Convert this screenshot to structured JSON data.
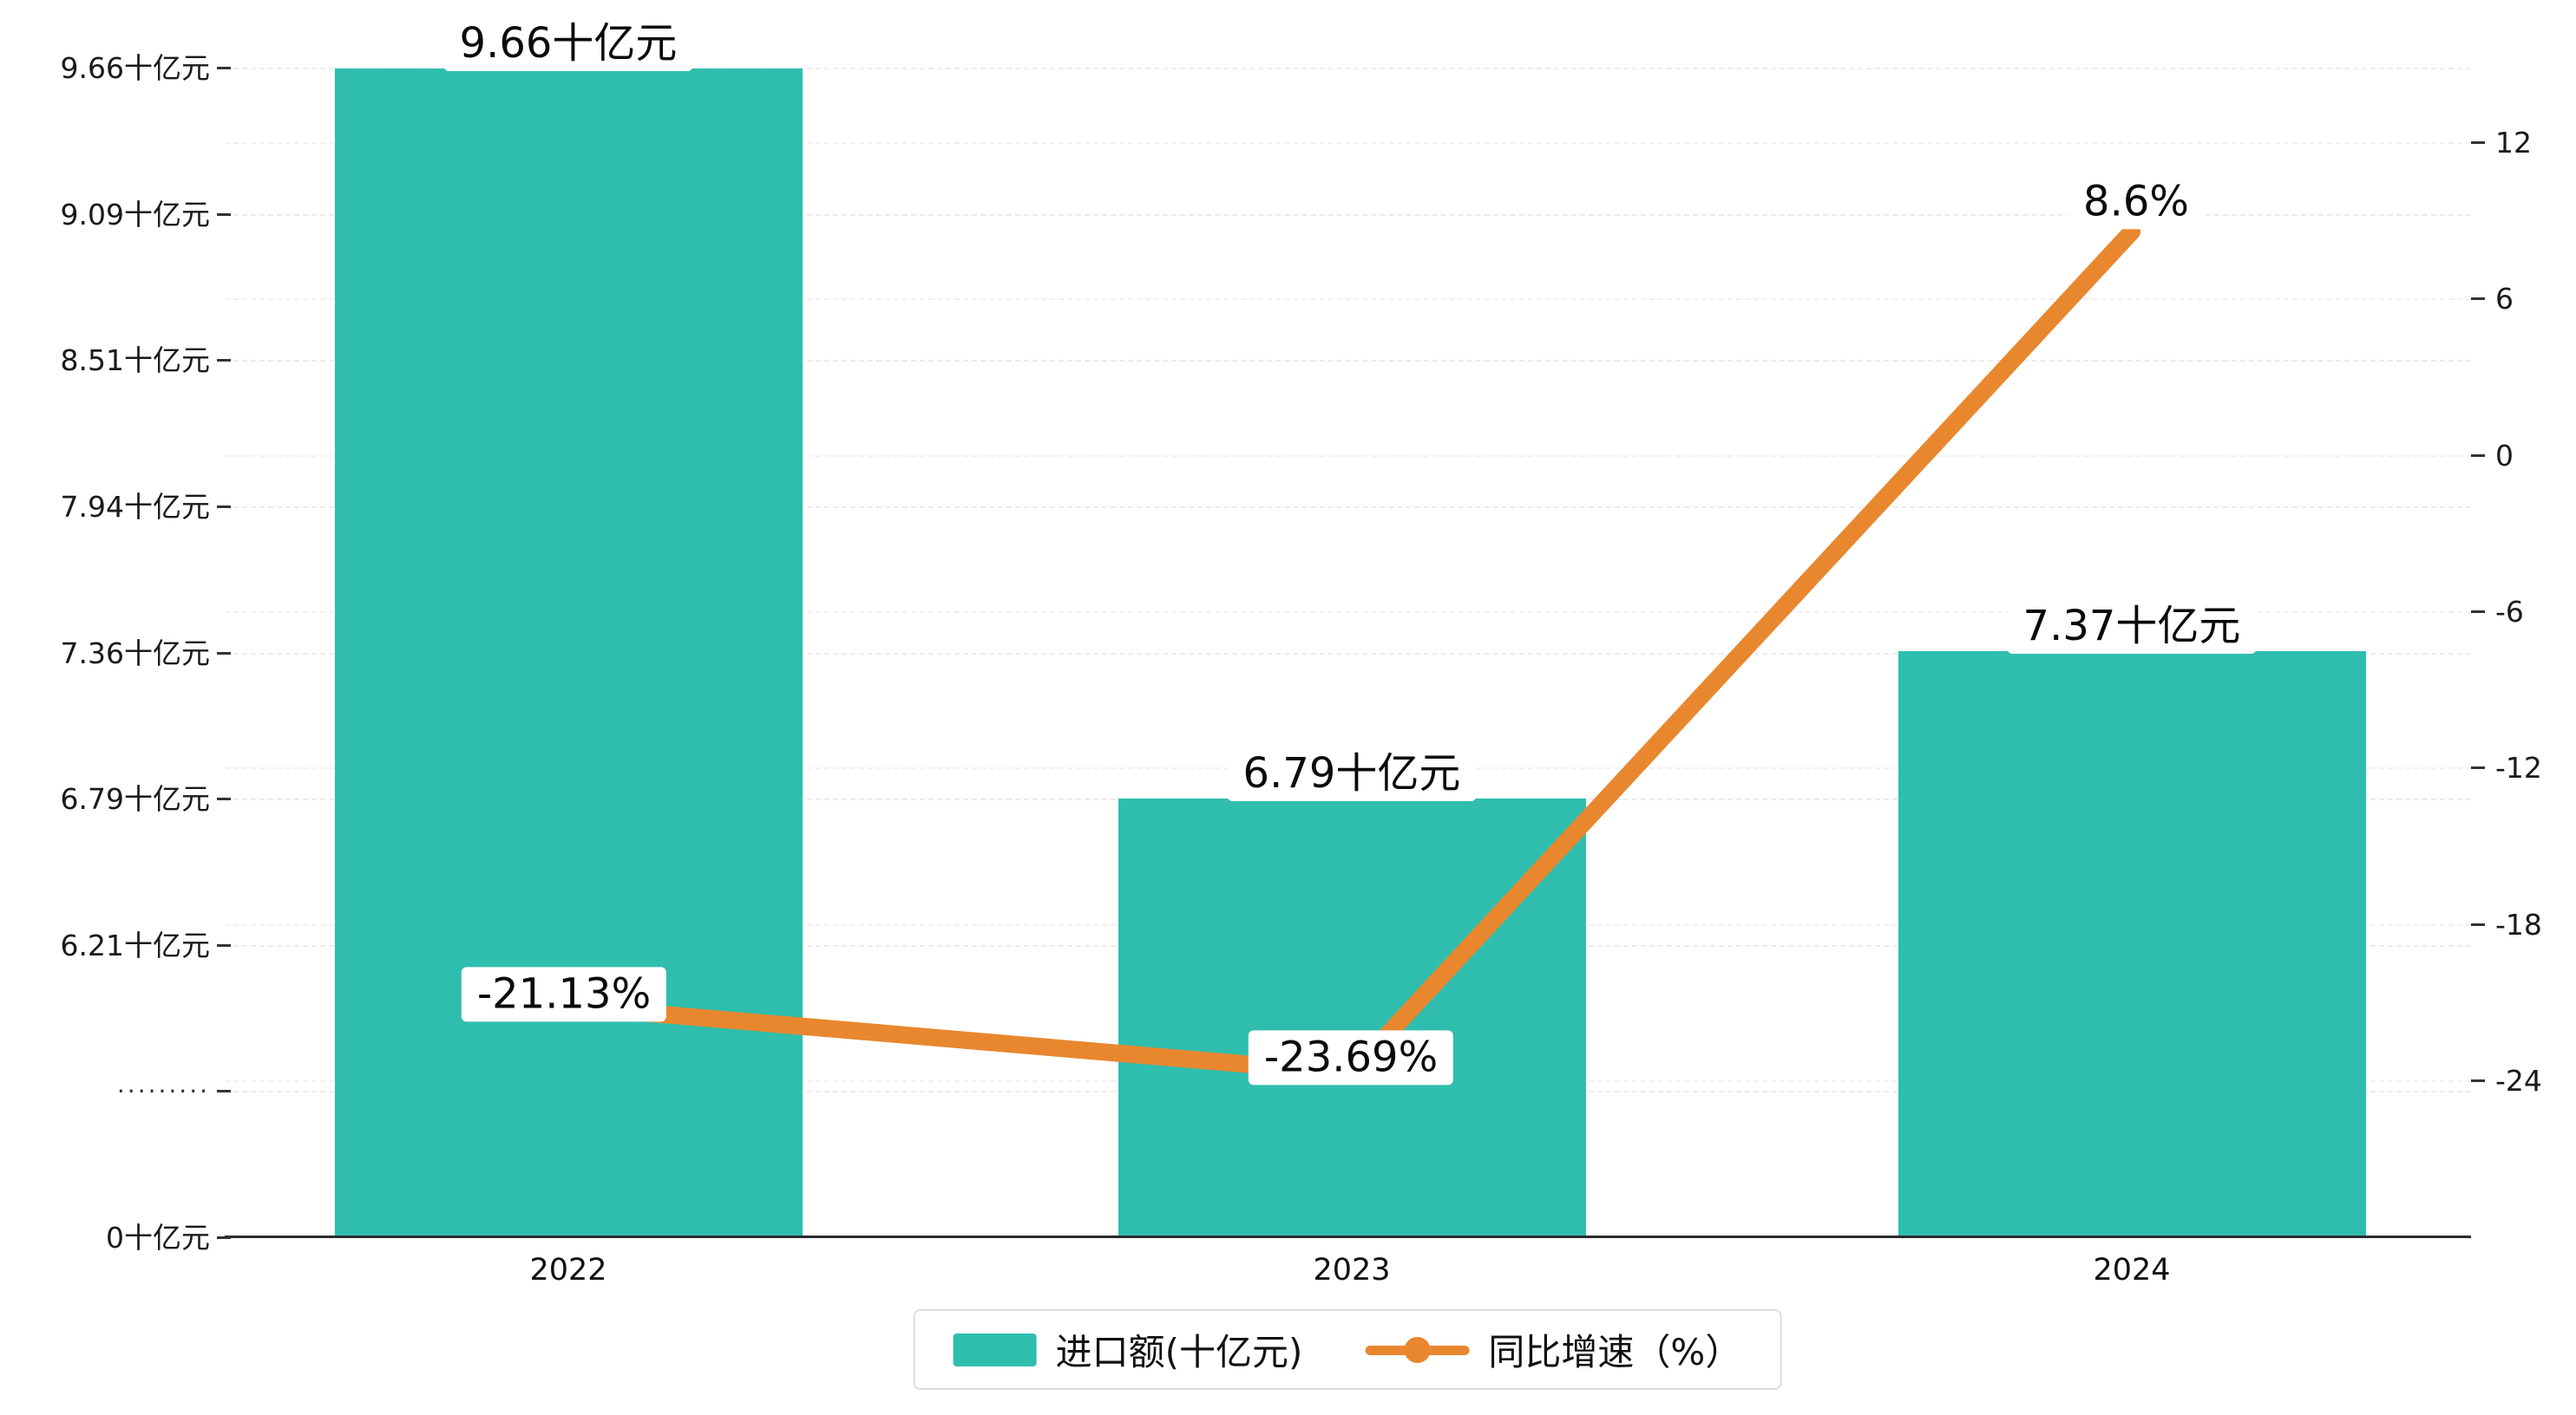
{
  "chart_data": {
    "type": "bar",
    "subtype": "bar+line combo, dual y-axes, broken left axis",
    "categories": [
      "2022",
      "2023",
      "2024"
    ],
    "series": [
      {
        "name": "进口额(十亿元)",
        "type": "bar",
        "values": [
          9.66,
          6.79,
          7.37
        ],
        "labels": [
          "9.66十亿元",
          "6.79十亿元",
          "7.37十亿元"
        ],
        "color": "#2fbeae",
        "axis": "left"
      },
      {
        "name": "同比增速（%）",
        "type": "line",
        "values": [
          -21.13,
          -23.69,
          8.6
        ],
        "labels": [
          "-21.13%",
          "-23.69%",
          "8.6%"
        ],
        "color": "#e8872e",
        "axis": "right"
      }
    ],
    "left_axis": {
      "tick_labels": [
        "9.66十亿元",
        "9.09十亿元",
        "8.51十亿元",
        "7.94十亿元",
        "7.36十亿元",
        "6.79十亿元",
        "6.21十亿元",
        "·········",
        "0十亿元"
      ],
      "tick_values": [
        9.66,
        9.085,
        8.51,
        7.935,
        7.36,
        6.785,
        6.21,
        null,
        0
      ],
      "max": 9.66,
      "step": 0.575,
      "broken_axis": true
    },
    "right_axis": {
      "tick_labels": [
        "12",
        "6",
        "0",
        "-6",
        "-12",
        "-18",
        "-24"
      ],
      "tick_values": [
        12,
        6,
        0,
        -6,
        -12,
        -18,
        -24
      ],
      "max": 12,
      "min": -24
    },
    "grid": true,
    "legend_position": "bottom-center"
  },
  "legend": {
    "items": [
      {
        "label": "进口额(十亿元)",
        "marker": "rect",
        "color": "#2fbeae"
      },
      {
        "label": "同比增速（%）",
        "marker": "line-dot",
        "color": "#e8872e"
      }
    ]
  },
  "colors": {
    "bar": "#2fbeae",
    "line": "#e8872e",
    "axis": "#2b2b2b",
    "grid": "#ececec",
    "text": "#111111",
    "legend_border": "#dddddd",
    "label_bg": "#ffffff"
  }
}
